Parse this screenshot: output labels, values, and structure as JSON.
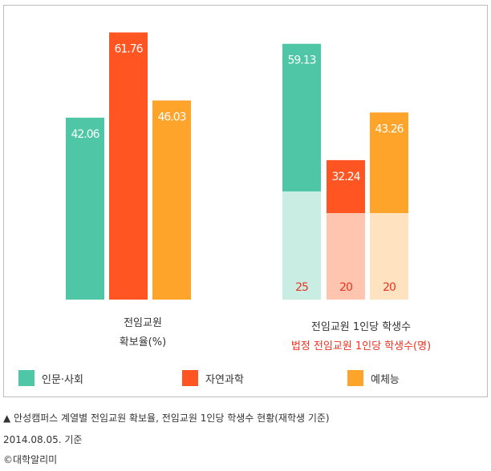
{
  "chart_data": {
    "type": "bar",
    "colors": {
      "humanities_social": "#4fc7a6",
      "natural_sciences": "#ff5522",
      "arts_physical": "#ffa42b",
      "humanities_social_light": "#c9ede2",
      "natural_sciences_light": "#ffc5ae",
      "arts_physical_light": "#ffe2c0",
      "legal_text": "#ee3322"
    },
    "legend": [
      "인문·사회",
      "자연과학",
      "예체능"
    ],
    "legend_position": "bottom",
    "groups": [
      {
        "label_lines": [
          "전임교원",
          "확보율(%)"
        ],
        "values": [
          42.06,
          61.76,
          46.03
        ],
        "value_labels": [
          "42.06",
          "61.76",
          "46.03"
        ]
      },
      {
        "label_lines": [
          "전임교원 1인당 학생수"
        ],
        "sub_label": "법정 전임교원 1인당 학생수(명)",
        "values": [
          59.13,
          32.24,
          43.26
        ],
        "value_labels": [
          "59.13",
          "32.24",
          "43.26"
        ],
        "legal_values": [
          25,
          20,
          20
        ],
        "legal_labels": [
          "25",
          "20",
          "20"
        ]
      }
    ]
  },
  "caption": {
    "line1": "▲ 안성캠퍼스 계열별 전임교원 확보율, 전임교원 1인당 학생수 현황(재학생 기준)",
    "line2": "2014.08.05. 기준",
    "line3": "©대학알리미"
  }
}
